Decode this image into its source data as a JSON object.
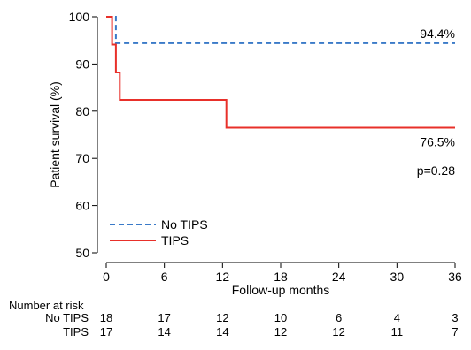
{
  "chart_data": {
    "type": "line",
    "title": "",
    "xlabel": "Follow-up months",
    "ylabel": "Patient survival (%)",
    "xlim": [
      0,
      36
    ],
    "ylim": [
      50,
      100
    ],
    "x_ticks": [
      "0",
      "6",
      "12",
      "18",
      "24",
      "30",
      "36"
    ],
    "y_ticks": [
      "50",
      "60",
      "70",
      "80",
      "90",
      "100"
    ],
    "grid": false,
    "legend_position": "bottom-left",
    "series": [
      {
        "name": "No TIPS",
        "style": "dashed",
        "color": "#3a7ac8",
        "x": [
          0,
          1,
          1,
          36
        ],
        "y": [
          100,
          100,
          94.4,
          94.4
        ],
        "end_label": "94.4%"
      },
      {
        "name": "TIPS",
        "style": "solid",
        "color": "#e8302a",
        "x": [
          0,
          0.6,
          0.6,
          1.0,
          1.0,
          1.4,
          1.4,
          12.4,
          12.4,
          36
        ],
        "y": [
          100,
          100,
          94.1,
          94.1,
          88.2,
          88.2,
          82.4,
          82.4,
          76.5,
          76.5
        ],
        "end_label": "76.5%"
      }
    ],
    "annotations": [
      "p=0.28"
    ],
    "risk_table": {
      "title": "Number at risk",
      "rows": [
        {
          "label": "No TIPS",
          "values": [
            "18",
            "17",
            "12",
            "10",
            "6",
            "4",
            "3"
          ]
        },
        {
          "label": "TIPS",
          "values": [
            "17",
            "14",
            "14",
            "12",
            "12",
            "11",
            "7"
          ]
        }
      ]
    }
  }
}
